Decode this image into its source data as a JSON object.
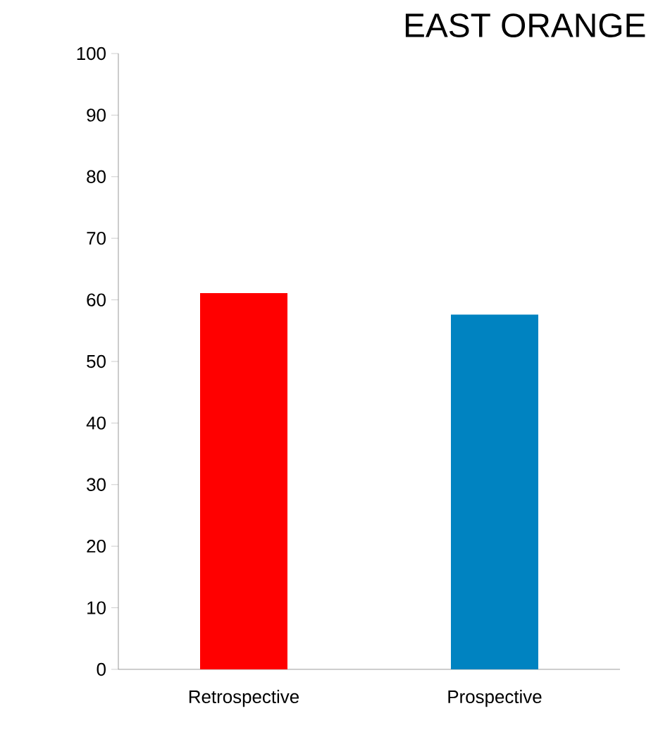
{
  "chart_data": {
    "type": "bar",
    "title": "EAST ORANGE",
    "categories": [
      "Retrospective",
      "Prospective"
    ],
    "values": [
      61.1,
      57.6
    ],
    "colors": [
      "#ff0000",
      "#0083c1"
    ],
    "ylim": [
      0,
      100
    ],
    "yticks": [
      0,
      10,
      20,
      30,
      40,
      50,
      60,
      70,
      80,
      90,
      100
    ],
    "grid": false
  }
}
